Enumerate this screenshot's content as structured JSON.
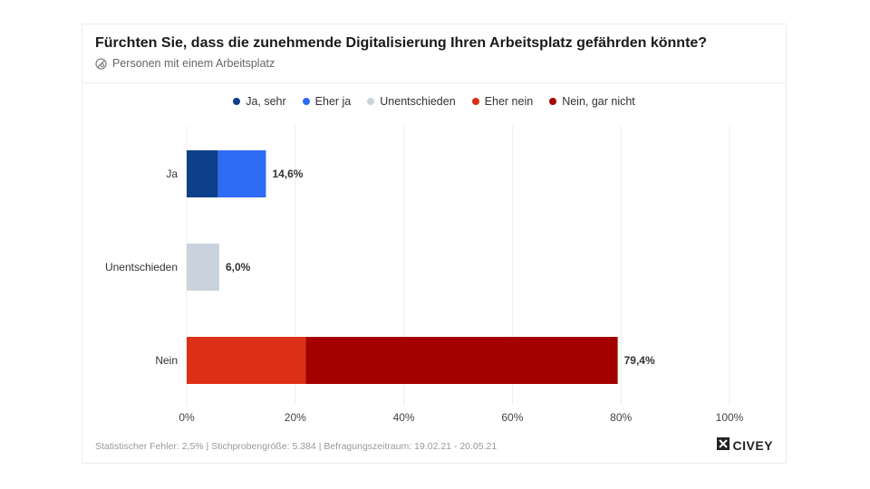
{
  "chart_data": {
    "type": "bar",
    "orientation": "horizontal",
    "stacked": true,
    "title": "Fürchten Sie, dass die zunehmende Digitalisierung Ihren Arbeitsplatz gefährden könnte?",
    "subtitle": "Personen mit einem Arbeitsplatz",
    "categories": [
      "Ja",
      "Unentschieden",
      "Nein"
    ],
    "series": [
      {
        "name": "Ja, sehr",
        "color": "#0b3f8a",
        "values": [
          5.8,
          0,
          0
        ]
      },
      {
        "name": "Eher ja",
        "color": "#2f6cf6",
        "values": [
          8.8,
          0,
          0
        ]
      },
      {
        "name": "Unentschieden",
        "color": "#c9d3dd",
        "values": [
          0,
          6.0,
          0
        ]
      },
      {
        "name": "Eher nein",
        "color": "#dc2f16",
        "values": [
          0,
          0,
          21.9
        ]
      },
      {
        "name": "Nein, gar nicht",
        "color": "#a50000",
        "values": [
          0,
          0,
          57.5
        ]
      }
    ],
    "totals_labels": [
      "14,6%",
      "6,0%",
      "79,4%"
    ],
    "xlim": [
      0,
      100
    ],
    "xticks": [
      0,
      20,
      40,
      60,
      80,
      100
    ],
    "xtick_labels": [
      "0%",
      "20%",
      "40%",
      "60%",
      "80%",
      "100%"
    ],
    "grid": true,
    "legend_position": "top-center"
  },
  "footer_text": "Statistischer Fehler: 2,5% | Stichprobengröße: 5.384 | Befragungszeitraum: 19.02.21 - 20.05.21",
  "brand": {
    "name": "CIVEY",
    "icon": "civey-logo-icon"
  },
  "subtitle_icon": "target-group-icon"
}
